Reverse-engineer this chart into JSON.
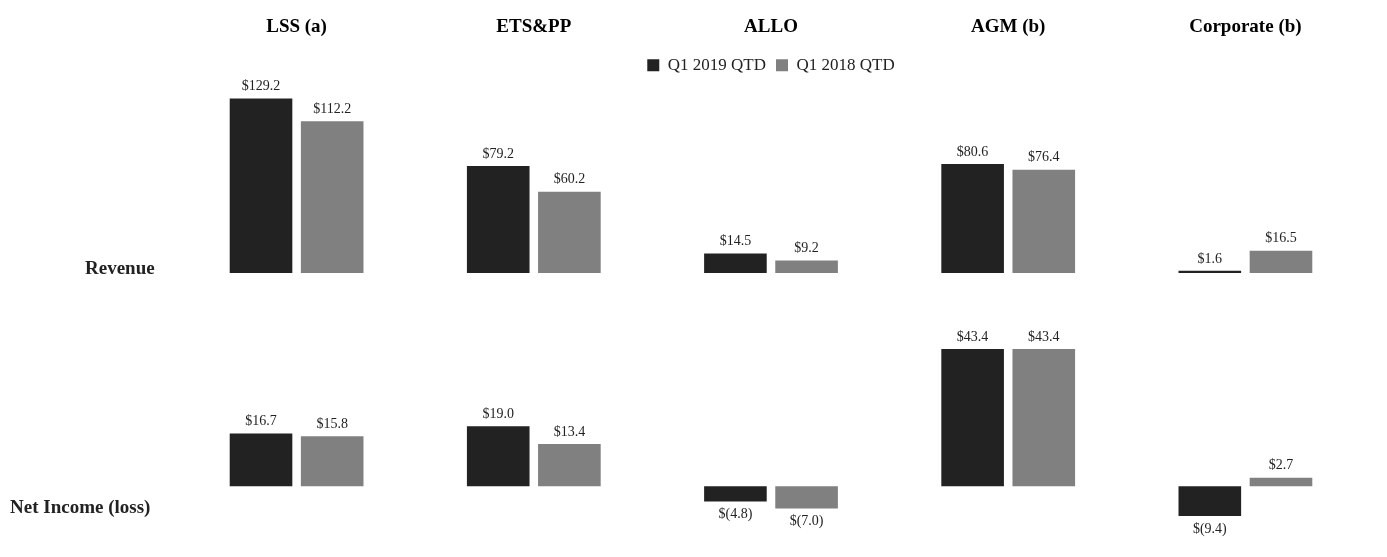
{
  "chart_data": [
    {
      "type": "bar",
      "categories": [
        "LSS (a)",
        "ETS&PP",
        "ALLO",
        "AGM (b)",
        "Corporate (b)"
      ],
      "ylabel": "Revenue",
      "legend": "top",
      "grid": false,
      "tick_labels": "x",
      "series": [
        {
          "name": "Q1 2019 QTD",
          "color": "#222222",
          "values": [
            129.2,
            79.2,
            14.5,
            80.6,
            1.6
          ],
          "value_labels": [
            "$129.2",
            "$79.2",
            "$14.5",
            "$80.6",
            "$1.6"
          ]
        },
        {
          "name": "Q1 2018 QTD",
          "color": "#808080",
          "values": [
            112.2,
            60.2,
            9.2,
            76.4,
            16.5
          ],
          "value_labels": [
            "$112.2",
            "$60.2",
            "$9.2",
            "$76.4",
            "$16.5"
          ]
        }
      ]
    },
    {
      "type": "bar",
      "categories": [
        null,
        null,
        null,
        null,
        null
      ],
      "ylabel": "Net Income (loss)",
      "legend": false,
      "grid": false,
      "tick_labels": false,
      "series": [
        {
          "color": "#222222",
          "values": [
            16.7,
            19.0,
            -4.8,
            43.4,
            -9.4
          ],
          "value_labels": [
            "$16.7",
            "$19.0",
            "$(4.8)",
            "$43.4",
            "$(9.4)"
          ]
        },
        {
          "color": "#808080",
          "values": [
            15.8,
            13.4,
            -7.0,
            43.4,
            2.7
          ],
          "value_labels": [
            "$15.8",
            "$13.4",
            "$(7.0)",
            "$43.4",
            "$2.7"
          ]
        }
      ]
    }
  ]
}
